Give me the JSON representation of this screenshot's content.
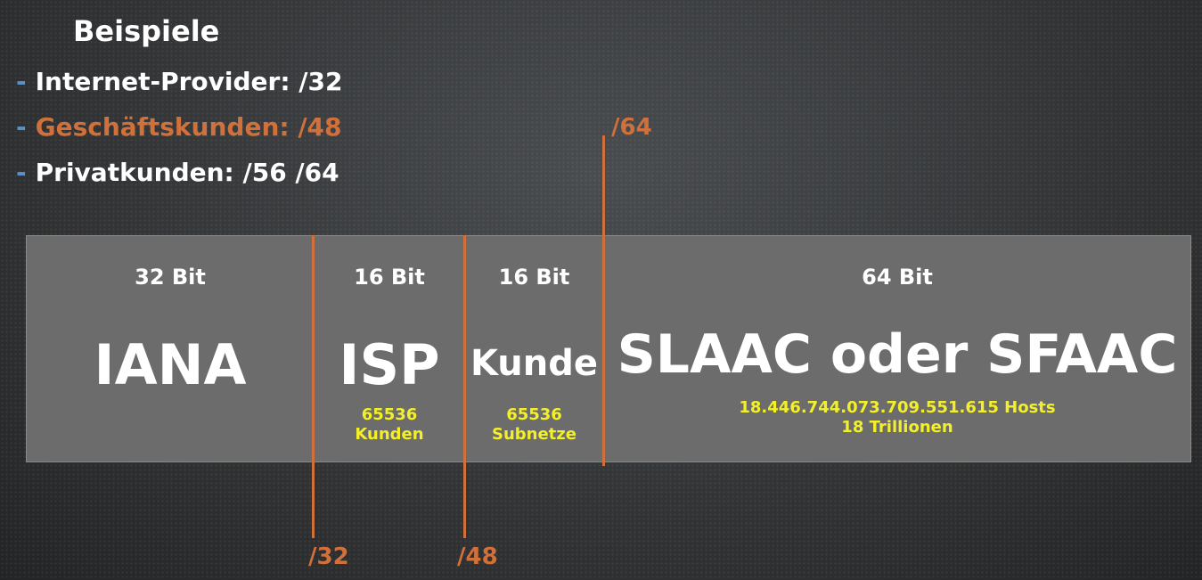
{
  "heading": "Beispiele",
  "examples": [
    {
      "dash": "-",
      "text": "Internet-Provider: /32"
    },
    {
      "dash": "-",
      "text": "Geschäftskunden: /48"
    },
    {
      "dash": "-",
      "text": "Privatkunden: /56 /64"
    }
  ],
  "segments": [
    {
      "bits": "32 Bit",
      "name": "IANA",
      "sub1": "",
      "sub2": ""
    },
    {
      "bits": "16 Bit",
      "name": "ISP",
      "sub1": "65536",
      "sub2": "Kunden"
    },
    {
      "bits": "16 Bit",
      "name": "Kunde",
      "sub1": "65536",
      "sub2": "Subnetze"
    },
    {
      "bits": "64 Bit",
      "name": "SLAAC oder SFAAC",
      "sub1": "18.446.744.073.709.551.615 Hosts",
      "sub2": "18 Trillionen"
    }
  ],
  "markers": {
    "m32": "/32",
    "m48": "/48",
    "m64": "/64"
  },
  "colors": {
    "accent_orange": "#d0703a",
    "bullet_blue": "#5b8fc7",
    "highlight_yellow": "#f3f02a",
    "bar_gray": "#6c6c6c"
  }
}
